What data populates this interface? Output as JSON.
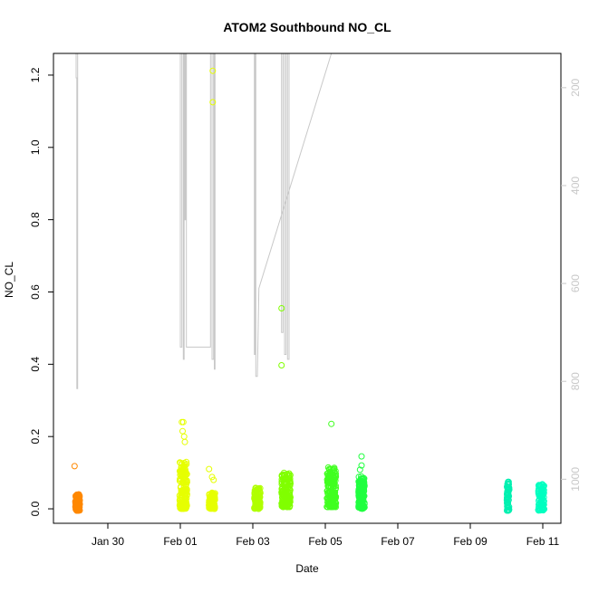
{
  "chart_data": {
    "type": "scatter",
    "title": "ATOM2 Southbound NO_CL",
    "xlabel": "Date",
    "ylabel": "NO_CL",
    "x_domain": [
      "2022-01-28T12:00",
      "2022-02-11T12:00"
    ],
    "ylim": [
      -0.04,
      1.26
    ],
    "y_ticks": [
      0.0,
      0.2,
      0.4,
      0.6,
      0.8,
      1.0,
      1.2
    ],
    "y_tick_labels": [
      "0.0",
      "0.2",
      "0.4",
      "0.6",
      "0.8",
      "1.0",
      "1.2"
    ],
    "x_ticks": [
      "2022-01-30",
      "2022-02-01",
      "2022-02-03",
      "2022-02-05",
      "2022-02-07",
      "2022-02-09",
      "2022-02-11"
    ],
    "x_tick_labels": [
      "Jan 30",
      "Feb 01",
      "Feb 03",
      "Feb 05",
      "Feb 07",
      "Feb 09",
      "Feb 11"
    ],
    "right_axis": {
      "label": "",
      "reversed": true,
      "range": [
        1090,
        130
      ],
      "ticks": [
        200,
        400,
        600,
        800,
        1000
      ],
      "tick_labels": [
        "200",
        "400",
        "600",
        "800",
        "1000"
      ],
      "color": "#c8c8c8"
    },
    "grid": false,
    "colors": {
      "gray_line": "#c8c8c8",
      "axis": "#000000"
    },
    "clusters": [
      {
        "x": "2022-01-29T04:00",
        "x_spread_h": 1.5,
        "y_min": -0.005,
        "y_max": 0.04,
        "n": 120,
        "color": "#ff8800",
        "outliers": [
          {
            "x": "2022-01-29T02:00",
            "y": 0.118
          }
        ]
      },
      {
        "x": "2022-02-01T02:00",
        "x_spread_h": 2.5,
        "y_min": 0.0,
        "y_max": 0.13,
        "n": 160,
        "color": "#e6ff00",
        "outliers": [
          {
            "x": "2022-02-01T01:00",
            "y": 0.24
          },
          {
            "x": "2022-02-01T02:00",
            "y": 0.24
          },
          {
            "x": "2022-02-01T01:30",
            "y": 0.215
          },
          {
            "x": "2022-02-01T02:30",
            "y": 0.2
          },
          {
            "x": "2022-02-01T03:00",
            "y": 0.185
          }
        ]
      },
      {
        "x": "2022-02-01T21:00",
        "x_spread_h": 2.0,
        "y_min": 0.0,
        "y_max": 0.045,
        "n": 110,
        "color": "#e6ff00",
        "outliers": [
          {
            "x": "2022-02-01T19:00",
            "y": 0.11
          },
          {
            "x": "2022-02-01T21:00",
            "y": 0.088
          },
          {
            "x": "2022-02-01T22:00",
            "y": 0.08
          },
          {
            "x": "2022-02-01T21:30",
            "y": 1.212
          },
          {
            "x": "2022-02-01T21:30",
            "y": 1.125
          }
        ]
      },
      {
        "x": "2022-02-03T03:00",
        "x_spread_h": 2.0,
        "y_min": 0.0,
        "y_max": 0.06,
        "n": 110,
        "color": "#b0ff00",
        "outliers": []
      },
      {
        "x": "2022-02-03T22:00",
        "x_spread_h": 3.0,
        "y_min": 0.005,
        "y_max": 0.1,
        "n": 170,
        "color": "#80ff00",
        "outliers": [
          {
            "x": "2022-02-03T19:00",
            "y": 0.555
          },
          {
            "x": "2022-02-03T19:00",
            "y": 0.397
          }
        ]
      },
      {
        "x": "2022-02-05T04:00",
        "x_spread_h": 3.0,
        "y_min": 0.005,
        "y_max": 0.115,
        "n": 190,
        "color": "#40ff20",
        "outliers": [
          {
            "x": "2022-02-05T04:00",
            "y": 0.235
          }
        ]
      },
      {
        "x": "2022-02-06T00:00",
        "x_spread_h": 2.0,
        "y_min": 0.0,
        "y_max": 0.09,
        "n": 150,
        "color": "#20ff40",
        "outliers": [
          {
            "x": "2022-02-06T00:00",
            "y": 0.145
          },
          {
            "x": "2022-02-06T00:00",
            "y": 0.12
          },
          {
            "x": "2022-02-05T23:00",
            "y": 0.108
          }
        ]
      },
      {
        "x": "2022-02-10T01:00",
        "x_spread_h": 0.8,
        "y_min": -0.005,
        "y_max": 0.075,
        "n": 60,
        "color": "#00f0b0",
        "outliers": []
      },
      {
        "x": "2022-02-10T23:00",
        "x_spread_h": 2.0,
        "y_min": -0.005,
        "y_max": 0.068,
        "n": 90,
        "color": "#00ffc0",
        "outliers": []
      }
    ],
    "secondary_line": [
      [
        "2022-01-29T03:00",
        130
      ],
      [
        "2022-01-29T03:00",
        180
      ],
      [
        "2022-01-29T03:30",
        180
      ],
      [
        "2022-01-29T03:30",
        815
      ],
      [
        "2022-01-29T04:00",
        815
      ],
      [
        "2022-01-29T04:00",
        130
      ],
      [
        "2022-02-01T00:00",
        130
      ],
      [
        "2022-02-01T00:00",
        730
      ],
      [
        "2022-02-01T01:00",
        730
      ],
      [
        "2022-02-01T01:00",
        130
      ],
      [
        "2022-02-01T02:00",
        130
      ],
      [
        "2022-02-01T02:00",
        755
      ],
      [
        "2022-02-01T02:30",
        755
      ],
      [
        "2022-02-01T02:30",
        130
      ],
      [
        "2022-02-01T03:00",
        130
      ],
      [
        "2022-02-01T03:00",
        470
      ],
      [
        "2022-02-01T03:30",
        470
      ],
      [
        "2022-02-01T03:30",
        130
      ],
      [
        "2022-02-01T04:00",
        130
      ],
      [
        "2022-02-01T04:00",
        730
      ],
      [
        "2022-02-01T20:00",
        730
      ],
      [
        "2022-02-01T20:00",
        130
      ],
      [
        "2022-02-01T21:00",
        130
      ],
      [
        "2022-02-01T21:00",
        755
      ],
      [
        "2022-02-01T22:00",
        755
      ],
      [
        "2022-02-01T22:00",
        130
      ],
      [
        "2022-02-01T22:30",
        130
      ],
      [
        "2022-02-01T22:30",
        775
      ],
      [
        "2022-02-01T23:00",
        775
      ],
      [
        "2022-02-01T23:00",
        130
      ],
      [
        "2022-02-03T01:00",
        130
      ],
      [
        "2022-02-03T01:00",
        745
      ],
      [
        "2022-02-03T01:30",
        745
      ],
      [
        "2022-02-03T01:30",
        130
      ],
      [
        "2022-02-03T02:00",
        130
      ],
      [
        "2022-02-03T02:00",
        790
      ],
      [
        "2022-02-03T03:00",
        790
      ],
      [
        "2022-02-03T03:00",
        790
      ],
      [
        "2022-02-03T04:00",
        610
      ],
      [
        "2022-02-03T04:00",
        610
      ],
      [
        "2022-02-05T04:00",
        130
      ],
      [
        "2022-02-03T19:00",
        130
      ],
      [
        "2022-02-03T19:00",
        700
      ],
      [
        "2022-02-03T20:00",
        700
      ],
      [
        "2022-02-03T20:00",
        130
      ],
      [
        "2022-02-03T21:00",
        130
      ],
      [
        "2022-02-03T21:00",
        745
      ],
      [
        "2022-02-03T22:00",
        745
      ],
      [
        "2022-02-03T22:00",
        130
      ],
      [
        "2022-02-03T23:00",
        130
      ],
      [
        "2022-02-03T23:00",
        755
      ],
      [
        "2022-02-04T00:00",
        755
      ],
      [
        "2022-02-04T00:00",
        130
      ]
    ]
  }
}
